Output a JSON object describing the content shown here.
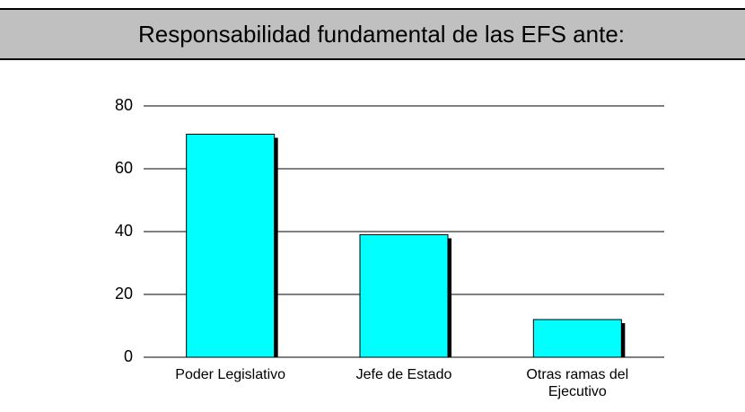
{
  "chart_data": {
    "type": "bar",
    "title": "Responsabilidad fundamental de las EFS ante:",
    "categories": [
      "Poder Legislativo",
      "Jefe de Estado",
      "Otras ramas del Ejecutivo"
    ],
    "values": [
      71,
      39,
      12
    ],
    "color": "#00ffff",
    "ylim": [
      0,
      80
    ],
    "yticks": [
      0,
      20,
      40,
      60,
      80
    ],
    "grid": true
  }
}
